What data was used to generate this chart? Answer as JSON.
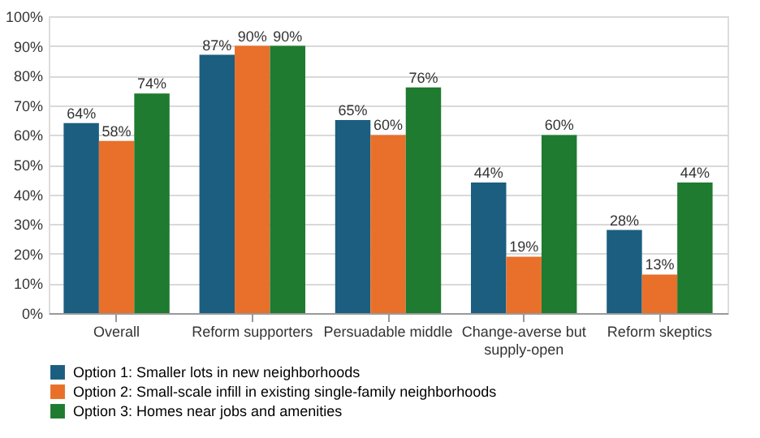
{
  "chart_data": {
    "type": "bar",
    "categories": [
      "Overall",
      "Reform supporters",
      "Persuadable middle",
      "Change-averse but supply-open",
      "Reform skeptics"
    ],
    "series": [
      {
        "name": "Option 1: Smaller lots in new neighborhoods",
        "color": "#1b5e80",
        "values": [
          64,
          87,
          65,
          44,
          28
        ],
        "value_labels": [
          "64%",
          "87%",
          "65%",
          "44%",
          "28%"
        ]
      },
      {
        "name": "Option 2: Small-scale infill in existing single-family neighborhoods",
        "color": "#e8702a",
        "values": [
          58,
          90,
          60,
          19,
          13
        ],
        "value_labels": [
          "58%",
          "90%",
          "60%",
          "19%",
          "13%"
        ]
      },
      {
        "name": "Option 3: Homes near jobs and amenities",
        "color": "#1e7b30",
        "values": [
          74,
          90,
          76,
          60,
          44
        ],
        "value_labels": [
          "74%",
          "90%",
          "76%",
          "60%",
          "44%"
        ]
      }
    ],
    "ylim": [
      0,
      100
    ],
    "yticks": [
      {
        "value": 0,
        "label": "0%"
      },
      {
        "value": 10,
        "label": "10%"
      },
      {
        "value": 20,
        "label": "20%"
      },
      {
        "value": 30,
        "label": "30%"
      },
      {
        "value": 40,
        "label": "40%"
      },
      {
        "value": 50,
        "label": "50%"
      },
      {
        "value": 60,
        "label": "60%"
      },
      {
        "value": 70,
        "label": "70%"
      },
      {
        "value": 80,
        "label": "80%"
      },
      {
        "value": 90,
        "label": "90%"
      },
      {
        "value": 100,
        "label": "100%"
      }
    ],
    "grid": "y",
    "legend": "bottom left"
  }
}
